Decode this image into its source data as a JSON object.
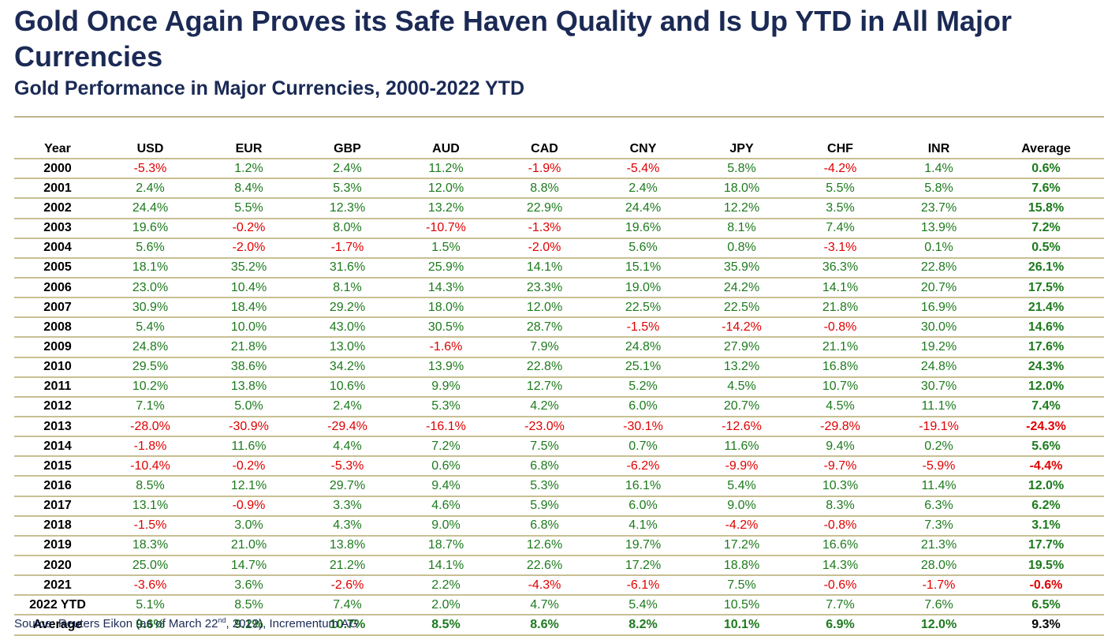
{
  "title": "Gold Once Again Proves its Safe Haven Quality and Is Up YTD in All Major Currencies",
  "subtitle": "Gold Performance in Major Currencies, 2000-2022 YTD",
  "source": {
    "prefix": "Source: Reuters Eikon (as of March 22",
    "superscript": "nd",
    "suffix": ", 2022), Incrementum AG"
  },
  "colors": {
    "title": "#1b2a55",
    "positive": "#1d7a1d",
    "negative": "#e00000",
    "rule": "#c8bf93"
  },
  "chart_data": {
    "type": "table",
    "columns": [
      "Year",
      "USD",
      "EUR",
      "GBP",
      "AUD",
      "CAD",
      "CNY",
      "JPY",
      "CHF",
      "INR",
      "Average"
    ],
    "rows": [
      {
        "year": "2000",
        "values": [
          "-5.3%",
          "1.2%",
          "2.4%",
          "11.2%",
          "-1.9%",
          "-5.4%",
          "5.8%",
          "-4.2%",
          "1.4%"
        ],
        "average": "0.6%"
      },
      {
        "year": "2001",
        "values": [
          "2.4%",
          "8.4%",
          "5.3%",
          "12.0%",
          "8.8%",
          "2.4%",
          "18.0%",
          "5.5%",
          "5.8%"
        ],
        "average": "7.6%"
      },
      {
        "year": "2002",
        "values": [
          "24.4%",
          "5.5%",
          "12.3%",
          "13.2%",
          "22.9%",
          "24.4%",
          "12.2%",
          "3.5%",
          "23.7%"
        ],
        "average": "15.8%"
      },
      {
        "year": "2003",
        "values": [
          "19.6%",
          "-0.2%",
          "8.0%",
          "-10.7%",
          "-1.3%",
          "19.6%",
          "8.1%",
          "7.4%",
          "13.9%"
        ],
        "average": "7.2%"
      },
      {
        "year": "2004",
        "values": [
          "5.6%",
          "-2.0%",
          "-1.7%",
          "1.5%",
          "-2.0%",
          "5.6%",
          "0.8%",
          "-3.1%",
          "0.1%"
        ],
        "average": "0.5%"
      },
      {
        "year": "2005",
        "values": [
          "18.1%",
          "35.2%",
          "31.6%",
          "25.9%",
          "14.1%",
          "15.1%",
          "35.9%",
          "36.3%",
          "22.8%"
        ],
        "average": "26.1%"
      },
      {
        "year": "2006",
        "values": [
          "23.0%",
          "10.4%",
          "8.1%",
          "14.3%",
          "23.3%",
          "19.0%",
          "24.2%",
          "14.1%",
          "20.7%"
        ],
        "average": "17.5%"
      },
      {
        "year": "2007",
        "values": [
          "30.9%",
          "18.4%",
          "29.2%",
          "18.0%",
          "12.0%",
          "22.5%",
          "22.5%",
          "21.8%",
          "16.9%"
        ],
        "average": "21.4%"
      },
      {
        "year": "2008",
        "values": [
          "5.4%",
          "10.0%",
          "43.0%",
          "30.5%",
          "28.7%",
          "-1.5%",
          "-14.2%",
          "-0.8%",
          "30.0%"
        ],
        "average": "14.6%"
      },
      {
        "year": "2009",
        "values": [
          "24.8%",
          "21.8%",
          "13.0%",
          "-1.6%",
          "7.9%",
          "24.8%",
          "27.9%",
          "21.1%",
          "19.2%"
        ],
        "average": "17.6%"
      },
      {
        "year": "2010",
        "values": [
          "29.5%",
          "38.6%",
          "34.2%",
          "13.9%",
          "22.8%",
          "25.1%",
          "13.2%",
          "16.8%",
          "24.8%"
        ],
        "average": "24.3%"
      },
      {
        "year": "2011",
        "values": [
          "10.2%",
          "13.8%",
          "10.6%",
          "9.9%",
          "12.7%",
          "5.2%",
          "4.5%",
          "10.7%",
          "30.7%"
        ],
        "average": "12.0%"
      },
      {
        "year": "2012",
        "values": [
          "7.1%",
          "5.0%",
          "2.4%",
          "5.3%",
          "4.2%",
          "6.0%",
          "20.7%",
          "4.5%",
          "11.1%"
        ],
        "average": "7.4%"
      },
      {
        "year": "2013",
        "values": [
          "-28.0%",
          "-30.9%",
          "-29.4%",
          "-16.1%",
          "-23.0%",
          "-30.1%",
          "-12.6%",
          "-29.8%",
          "-19.1%"
        ],
        "average": "-24.3%"
      },
      {
        "year": "2014",
        "values": [
          "-1.8%",
          "11.6%",
          "4.4%",
          "7.2%",
          "7.5%",
          "0.7%",
          "11.6%",
          "9.4%",
          "0.2%"
        ],
        "average": "5.6%"
      },
      {
        "year": "2015",
        "values": [
          "-10.4%",
          "-0.2%",
          "-5.3%",
          "0.6%",
          "6.8%",
          "-6.2%",
          "-9.9%",
          "-9.7%",
          "-5.9%"
        ],
        "average": "-4.4%"
      },
      {
        "year": "2016",
        "values": [
          "8.5%",
          "12.1%",
          "29.7%",
          "9.4%",
          "5.3%",
          "16.1%",
          "5.4%",
          "10.3%",
          "11.4%"
        ],
        "average": "12.0%"
      },
      {
        "year": "2017",
        "values": [
          "13.1%",
          "-0.9%",
          "3.3%",
          "4.6%",
          "5.9%",
          "6.0%",
          "9.0%",
          "8.3%",
          "6.3%"
        ],
        "average": "6.2%"
      },
      {
        "year": "2018",
        "values": [
          "-1.5%",
          "3.0%",
          "4.3%",
          "9.0%",
          "6.8%",
          "4.1%",
          "-4.2%",
          "-0.8%",
          "7.3%"
        ],
        "average": "3.1%"
      },
      {
        "year": "2019",
        "values": [
          "18.3%",
          "21.0%",
          "13.8%",
          "18.7%",
          "12.6%",
          "19.7%",
          "17.2%",
          "16.6%",
          "21.3%"
        ],
        "average": "17.7%"
      },
      {
        "year": "2020",
        "values": [
          "25.0%",
          "14.7%",
          "21.2%",
          "14.1%",
          "22.6%",
          "17.2%",
          "18.8%",
          "14.3%",
          "28.0%"
        ],
        "average": "19.5%"
      },
      {
        "year": "2021",
        "values": [
          "-3.6%",
          "3.6%",
          "-2.6%",
          "2.2%",
          "-4.3%",
          "-6.1%",
          "7.5%",
          "-0.6%",
          "-1.7%"
        ],
        "average": "-0.6%"
      },
      {
        "year": "2022 YTD",
        "values": [
          "5.1%",
          "8.5%",
          "7.4%",
          "2.0%",
          "4.7%",
          "5.4%",
          "10.5%",
          "7.7%",
          "7.6%"
        ],
        "average": "6.5%"
      }
    ],
    "average_row": {
      "label": "Average",
      "values": [
        "9.6%",
        "9.1%",
        "10.7%",
        "8.5%",
        "8.6%",
        "8.2%",
        "10.1%",
        "6.9%",
        "12.0%"
      ],
      "average": "9.3%"
    }
  }
}
